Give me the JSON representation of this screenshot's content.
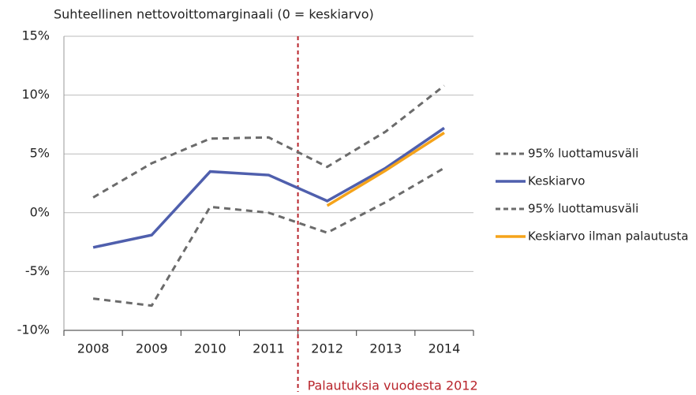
{
  "chart_data": {
    "type": "line",
    "title": "Suhteellinen nettovoittomarginaali (0 = keskiarvo)",
    "annotation": "Palautuksia vuodesta 2012",
    "categories": [
      "2008",
      "2009",
      "2010",
      "2011",
      "2012",
      "2013",
      "2014"
    ],
    "series": [
      {
        "name": "95% luottamusväli",
        "color": "#6b6b6b",
        "dashed": true,
        "values": [
          1.3,
          4.2,
          6.3,
          6.4,
          3.9,
          6.9,
          10.8
        ]
      },
      {
        "name": "Keskiarvo",
        "color": "#4f5fad",
        "dashed": false,
        "values": [
          -2.95,
          -1.9,
          3.5,
          3.2,
          1.0,
          3.8,
          7.2
        ]
      },
      {
        "name": "95% luottamusväli",
        "color": "#6b6b6b",
        "dashed": true,
        "values": [
          -7.3,
          -7.9,
          0.5,
          0,
          -1.7,
          0.9,
          3.8
        ]
      },
      {
        "name": "Keskiarvo ilman palautusta",
        "color": "#f5a31a",
        "dashed": false,
        "values": [
          null,
          null,
          null,
          null,
          0.6,
          3.6,
          6.8
        ]
      }
    ],
    "ylim": [
      -10,
      15
    ],
    "yticks": [
      {
        "value": -10,
        "label": "-10%"
      },
      {
        "value": -5,
        "label": "-5%"
      },
      {
        "value": 0,
        "label": "0%"
      },
      {
        "value": 5,
        "label": "5%"
      },
      {
        "value": 10,
        "label": "10%"
      },
      {
        "value": 15,
        "label": "15%"
      }
    ],
    "grid": true,
    "legend": "right"
  }
}
